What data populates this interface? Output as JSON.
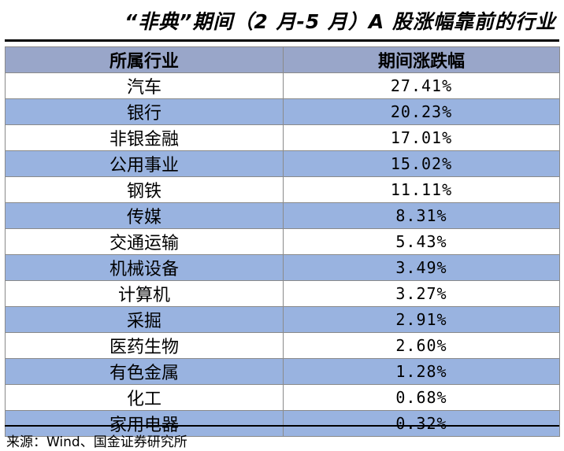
{
  "title": "“非典”期间（2 月-5 月）A 股涨幅靠前的行业",
  "table": {
    "headers": [
      "所属行业",
      "期间涨跌幅"
    ],
    "rows": [
      [
        "汽车",
        "27.41%"
      ],
      [
        "银行",
        "20.23%"
      ],
      [
        "非银金融",
        "17.01%"
      ],
      [
        "公用事业",
        "15.02%"
      ],
      [
        "钢铁",
        "11.11%"
      ],
      [
        "传媒",
        "8.31%"
      ],
      [
        "交通运输",
        "5.43%"
      ],
      [
        "机械设备",
        "3.49%"
      ],
      [
        "计算机",
        "3.27%"
      ],
      [
        "采掘",
        "2.91%"
      ],
      [
        "医药生物",
        "2.60%"
      ],
      [
        "有色金属",
        "1.28%"
      ],
      [
        "化工",
        "0.68%"
      ],
      [
        "家用电器",
        "0.32%"
      ]
    ]
  },
  "source": "来源：Wind、国金证券研究所",
  "colors": {
    "header_bg": "#99a6c9",
    "stripe_bg": "#99b3e0",
    "plain_bg": "#ffffff"
  }
}
